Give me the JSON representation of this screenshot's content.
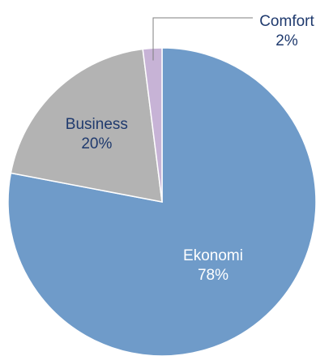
{
  "chart_data": {
    "type": "pie",
    "title": "",
    "slices": [
      {
        "label": "Ekonomi",
        "value": 78,
        "value_label": "78%",
        "color": "#6f9bc9",
        "label_color": "#ffffff"
      },
      {
        "label": "Business",
        "value": 20,
        "value_label": "20%",
        "color": "#b3b3b3",
        "label_color": "#1f3a6e"
      },
      {
        "label": "Comfort",
        "value": 2,
        "value_label": "2%",
        "color": "#c7b3d6",
        "label_color": "#1f3a6e"
      }
    ],
    "start": "12 o'clock",
    "direction": "clockwise",
    "slice_border_color": "#ffffff",
    "leader_line_color": "#7f7f7f",
    "legend": "none"
  }
}
